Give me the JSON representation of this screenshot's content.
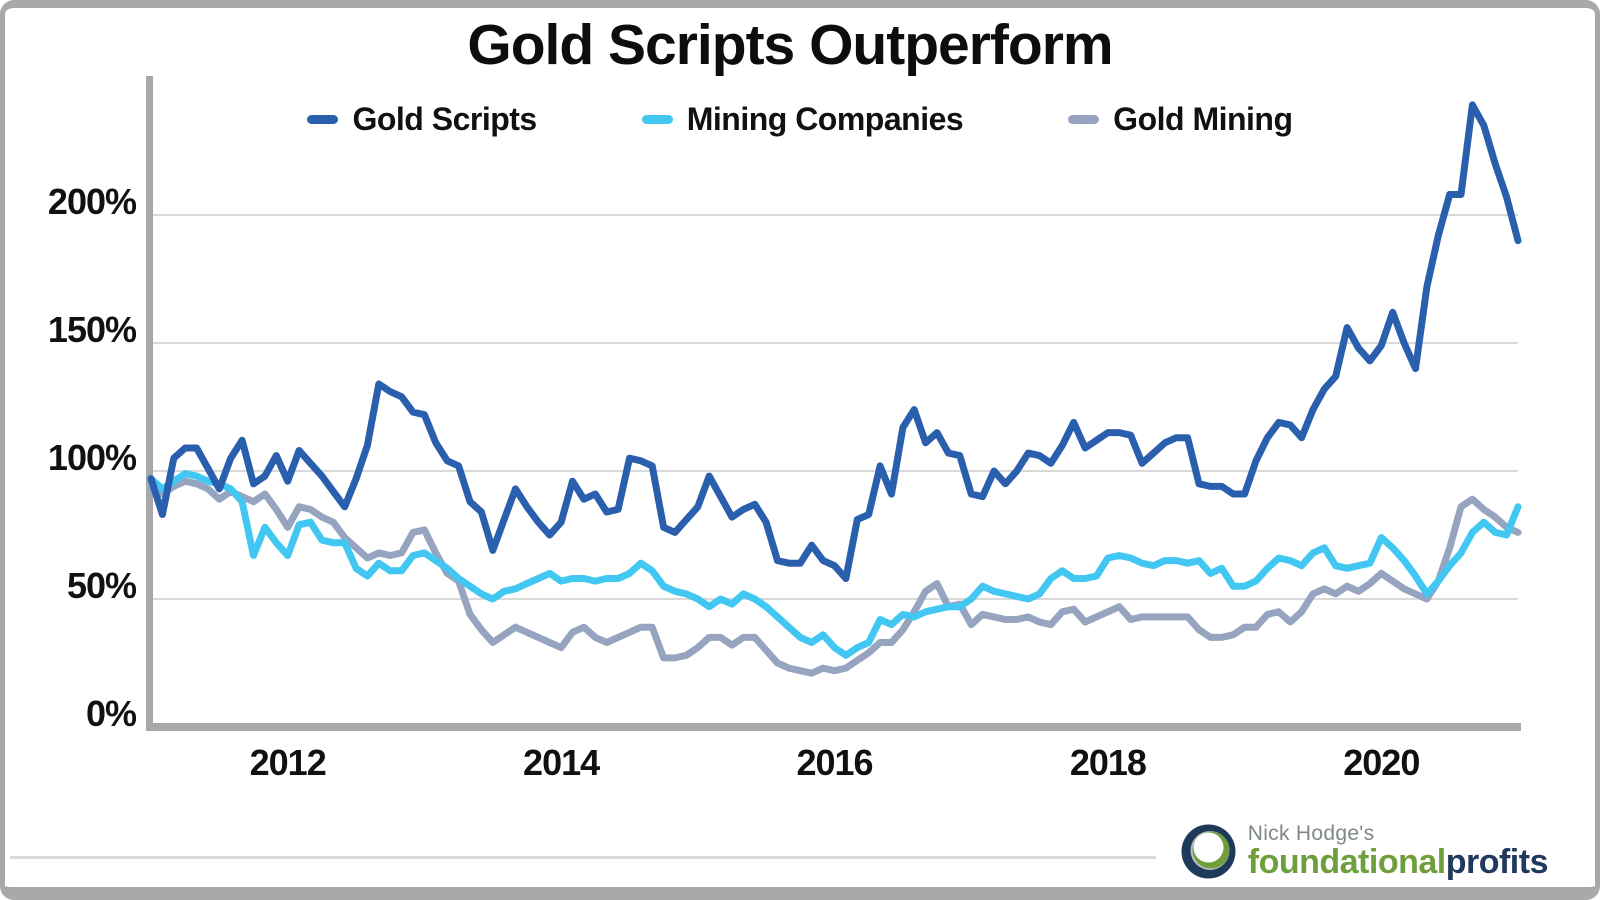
{
  "title": "Gold Scripts Outperform",
  "branding": {
    "byline": "Nick Hodge's",
    "brand_primary": "foundational",
    "brand_secondary": "profits",
    "byline_color": "#7f8689",
    "brand_primary_color": "#6f9f3d",
    "brand_secondary_color": "#21395c",
    "logo_navy": "#1e3a5a",
    "logo_green": "#6f9f3d"
  },
  "colors": {
    "axis": "#a8a8a8",
    "gridline": "#d9d9d9",
    "title_text": "#0d0d0d",
    "frame_border": "#a9a9a9"
  },
  "chart_data": {
    "type": "line",
    "title": "Gold Scripts Outperform",
    "x_unit": "month",
    "x_start": "2011-01",
    "x_end": "2021-01",
    "n_points": 121,
    "grid": "horizontal",
    "legend_position": "top",
    "ylim": [
      0,
      253
    ],
    "y_ticks": [
      {
        "label": "0%",
        "value": 0
      },
      {
        "label": "50%",
        "value": 50
      },
      {
        "label": "100%",
        "value": 100
      },
      {
        "label": "150%",
        "value": 150
      },
      {
        "label": "200%",
        "value": 200
      }
    ],
    "x_ticks": [
      {
        "label": "2012",
        "month_index": 12
      },
      {
        "label": "2014",
        "month_index": 36
      },
      {
        "label": "2016",
        "month_index": 60
      },
      {
        "label": "2018",
        "month_index": 84
      },
      {
        "label": "2020",
        "month_index": 108
      }
    ],
    "series": [
      {
        "name": "Gold Scripts",
        "color": "#2a5fae",
        "values": [
          97,
          83,
          105,
          109,
          109,
          101,
          93,
          105,
          112,
          95,
          98,
          106,
          96,
          108,
          103,
          98,
          92,
          86,
          97,
          110,
          134,
          131,
          129,
          123,
          122,
          111,
          104,
          102,
          88,
          84,
          69,
          81,
          93,
          86,
          80,
          75,
          80,
          96,
          89,
          91,
          84,
          85,
          105,
          104,
          102,
          78,
          76,
          81,
          86,
          98,
          90,
          82,
          85,
          87,
          80,
          65,
          64,
          64,
          71,
          65,
          63,
          58,
          81,
          83,
          102,
          91,
          117,
          124,
          111,
          115,
          107,
          106,
          91,
          90,
          100,
          95,
          100,
          107,
          106,
          103,
          110,
          119,
          109,
          112,
          115,
          115,
          114,
          103,
          107,
          111,
          113,
          113,
          95,
          94,
          94,
          91,
          91,
          104,
          113,
          119,
          118,
          113,
          124,
          132,
          137,
          156,
          148,
          143,
          149,
          162,
          150,
          140,
          172,
          192,
          208,
          208,
          243,
          235,
          220,
          207,
          190
        ]
      },
      {
        "name": "Mining Companies",
        "color": "#41c7f2",
        "values": [
          97,
          93,
          96,
          99,
          98,
          96,
          95,
          93,
          88,
          67,
          78,
          72,
          67,
          79,
          80,
          73,
          72,
          72,
          62,
          59,
          64,
          61,
          61,
          67,
          68,
          65,
          62,
          58,
          55,
          52,
          50,
          53,
          54,
          56,
          58,
          60,
          57,
          58,
          58,
          57,
          58,
          58,
          60,
          64,
          61,
          55,
          53,
          52,
          50,
          47,
          50,
          48,
          52,
          50,
          47,
          43,
          39,
          35,
          33,
          36,
          31,
          28,
          31,
          33,
          42,
          40,
          44,
          43,
          45,
          46,
          47,
          47,
          50,
          55,
          53,
          52,
          51,
          50,
          52,
          58,
          61,
          58,
          58,
          59,
          66,
          67,
          66,
          64,
          63,
          65,
          65,
          64,
          65,
          60,
          62,
          55,
          55,
          57,
          62,
          66,
          65,
          63,
          68,
          70,
          63,
          62,
          63,
          64,
          74,
          70,
          65,
          59,
          52,
          57,
          63,
          68,
          76,
          80,
          76,
          75,
          86
        ]
      },
      {
        "name": "Gold Mining",
        "color": "#97a4c0",
        "values": [
          93,
          91,
          94,
          96,
          95,
          93,
          89,
          92,
          90,
          88,
          91,
          85,
          78,
          86,
          85,
          82,
          80,
          74,
          70,
          66,
          68,
          67,
          68,
          76,
          77,
          68,
          60,
          57,
          44,
          38,
          33,
          36,
          39,
          37,
          35,
          33,
          31,
          37,
          39,
          35,
          33,
          35,
          37,
          39,
          39,
          27,
          27,
          28,
          31,
          35,
          35,
          32,
          35,
          35,
          30,
          25,
          23,
          22,
          21,
          23,
          22,
          23,
          26,
          29,
          33,
          33,
          38,
          45,
          53,
          56,
          47,
          48,
          40,
          44,
          43,
          42,
          42,
          43,
          41,
          40,
          45,
          46,
          41,
          43,
          45,
          47,
          42,
          43,
          43,
          43,
          43,
          43,
          38,
          35,
          35,
          36,
          39,
          39,
          44,
          45,
          41,
          45,
          52,
          54,
          52,
          55,
          53,
          56,
          60,
          57,
          54,
          52,
          50,
          57,
          70,
          86,
          89,
          85,
          82,
          78,
          76
        ]
      }
    ]
  }
}
